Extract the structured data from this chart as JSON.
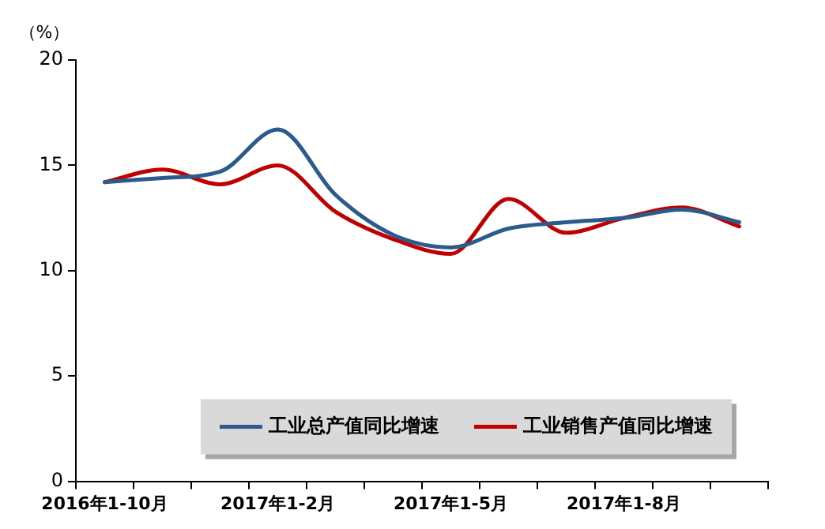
{
  "chart_data": {
    "type": "line",
    "ylabel": "（%）",
    "categories": [
      "2016年1-10月",
      null,
      null,
      "2017年1-2月",
      null,
      null,
      "2017年1-5月",
      null,
      null,
      "2017年1-8月",
      null,
      null
    ],
    "series": [
      {
        "name": "工业总产值同比增速",
        "color": "#2b5b8d",
        "values": [
          14.2,
          14.4,
          14.7,
          16.7,
          13.6,
          11.7,
          11.1,
          12.0,
          12.3,
          12.5,
          12.9,
          12.3
        ]
      },
      {
        "name": "工业销售产值同比增速",
        "color": "#c00000",
        "values": [
          14.2,
          14.8,
          14.1,
          15.0,
          12.8,
          11.5,
          10.8,
          13.4,
          11.8,
          12.5,
          13.0,
          12.1
        ]
      }
    ],
    "ylim": [
      0,
      20
    ],
    "yticks": [
      0,
      5,
      10,
      15,
      20
    ],
    "grid": false,
    "legend": "bottom right",
    "marker": "none",
    "line_style": "solid"
  }
}
